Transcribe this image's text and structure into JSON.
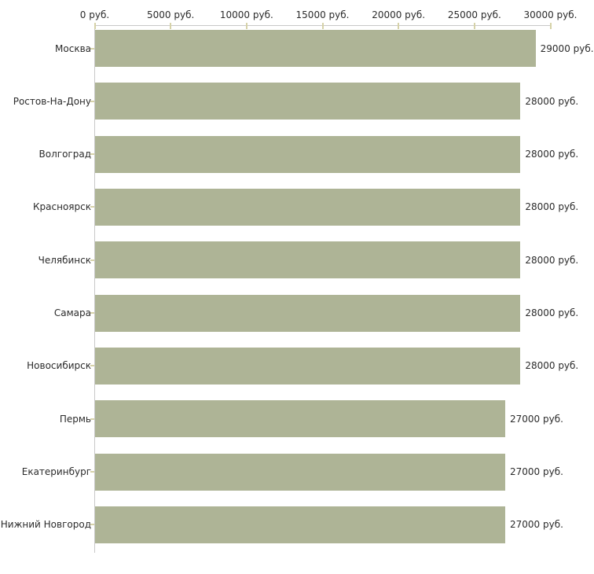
{
  "chart_data": {
    "type": "bar",
    "orientation": "horizontal",
    "title": "",
    "xlabel": "",
    "ylabel": "",
    "unit": "руб.",
    "xlim": [
      0,
      30000
    ],
    "grid": false,
    "legend": "none",
    "categories": [
      "Москва",
      "Ростов-На-Дону",
      "Волгоград",
      "Красноярск",
      "Челябинск",
      "Самара",
      "Новосибирск",
      "Пермь",
      "Екатеринбург",
      "Нижний Новгород"
    ],
    "values": [
      29000,
      28000,
      28000,
      28000,
      28000,
      28000,
      28000,
      27000,
      27000,
      27000
    ],
    "value_labels": [
      "29000 руб.",
      "28000 руб.",
      "28000 руб.",
      "28000 руб.",
      "28000 руб.",
      "28000 руб.",
      "28000 руб.",
      "27000 руб.",
      "27000 руб.",
      "27000 руб."
    ],
    "x_ticks": [
      {
        "value": 0,
        "label": "0 руб."
      },
      {
        "value": 5000,
        "label": "5000 руб."
      },
      {
        "value": 10000,
        "label": "10000 руб."
      },
      {
        "value": 15000,
        "label": "15000 руб."
      },
      {
        "value": 20000,
        "label": "20000 руб."
      },
      {
        "value": 25000,
        "label": "25000 руб."
      },
      {
        "value": 30000,
        "label": "30000 руб."
      }
    ],
    "colors": {
      "bar": "#aeb496",
      "tick": "#d6d2a8",
      "axis": "#c8c8c8",
      "text": "#2b2b2b",
      "background": "#ffffff"
    }
  }
}
